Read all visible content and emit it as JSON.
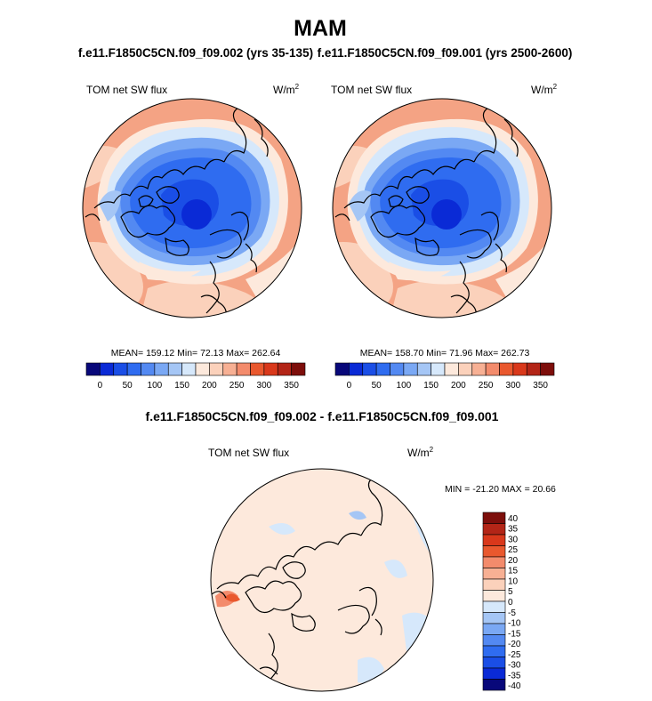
{
  "figure": {
    "title": "MAM",
    "case_left": "f.e11.F1850C5CN.f09_f09.002 (yrs 35-135)",
    "case_right": "f.e11.F1850C5CN.f09_f09.001 (yrs 2500-2600)",
    "diff_title": "f.e11.F1850C5CN.f09_f09.002 - f.e11.F1850C5CN.f09_f09.001"
  },
  "panels": [
    {
      "id": "case1",
      "variable": "TOM net SW flux",
      "units_base": "W/m",
      "units_exp": "2",
      "stats": "MEAN= 159.12  Min=  72.13  Max= 262.64"
    },
    {
      "id": "case2",
      "variable": "TOM net SW flux",
      "units_base": "W/m",
      "units_exp": "2",
      "stats": "MEAN= 158.70  Min=  71.96  Max= 262.73"
    },
    {
      "id": "diff",
      "variable": "TOM net SW flux",
      "units_base": "W/m",
      "units_exp": "2",
      "stats": "MIN = -21.20 MAX =  20.66"
    }
  ],
  "colorbar_abs": {
    "colors": [
      "#08087a",
      "#0a2ad6",
      "#1a4ee6",
      "#2f6cf0",
      "#5389f2",
      "#7aa8f4",
      "#a5c6f5",
      "#d6e8fb",
      "#fde9dc",
      "#fbd1bb",
      "#f7b094",
      "#f38b6c",
      "#e9582e",
      "#d9381b",
      "#b32517",
      "#7d0e0b"
    ],
    "labels": [
      "0",
      "50",
      "100",
      "150",
      "200",
      "250",
      "300",
      "350"
    ]
  },
  "colorbar_diff": {
    "colors": [
      "#08087a",
      "#0a2ad6",
      "#1a4ee6",
      "#2f6cf0",
      "#5389f2",
      "#7aa8f4",
      "#a5c6f5",
      "#d6e8fb",
      "#fde9dc",
      "#fbd1bb",
      "#f7b094",
      "#f38b6c",
      "#e9582e",
      "#d9381b",
      "#b32517",
      "#7d0e0b"
    ],
    "labels": [
      "40",
      "35",
      "30",
      "25",
      "20",
      "15",
      "10",
      "5",
      "0",
      "-5",
      "-10",
      "-15",
      "-20",
      "-25",
      "-30",
      "-35",
      "-40"
    ]
  }
}
